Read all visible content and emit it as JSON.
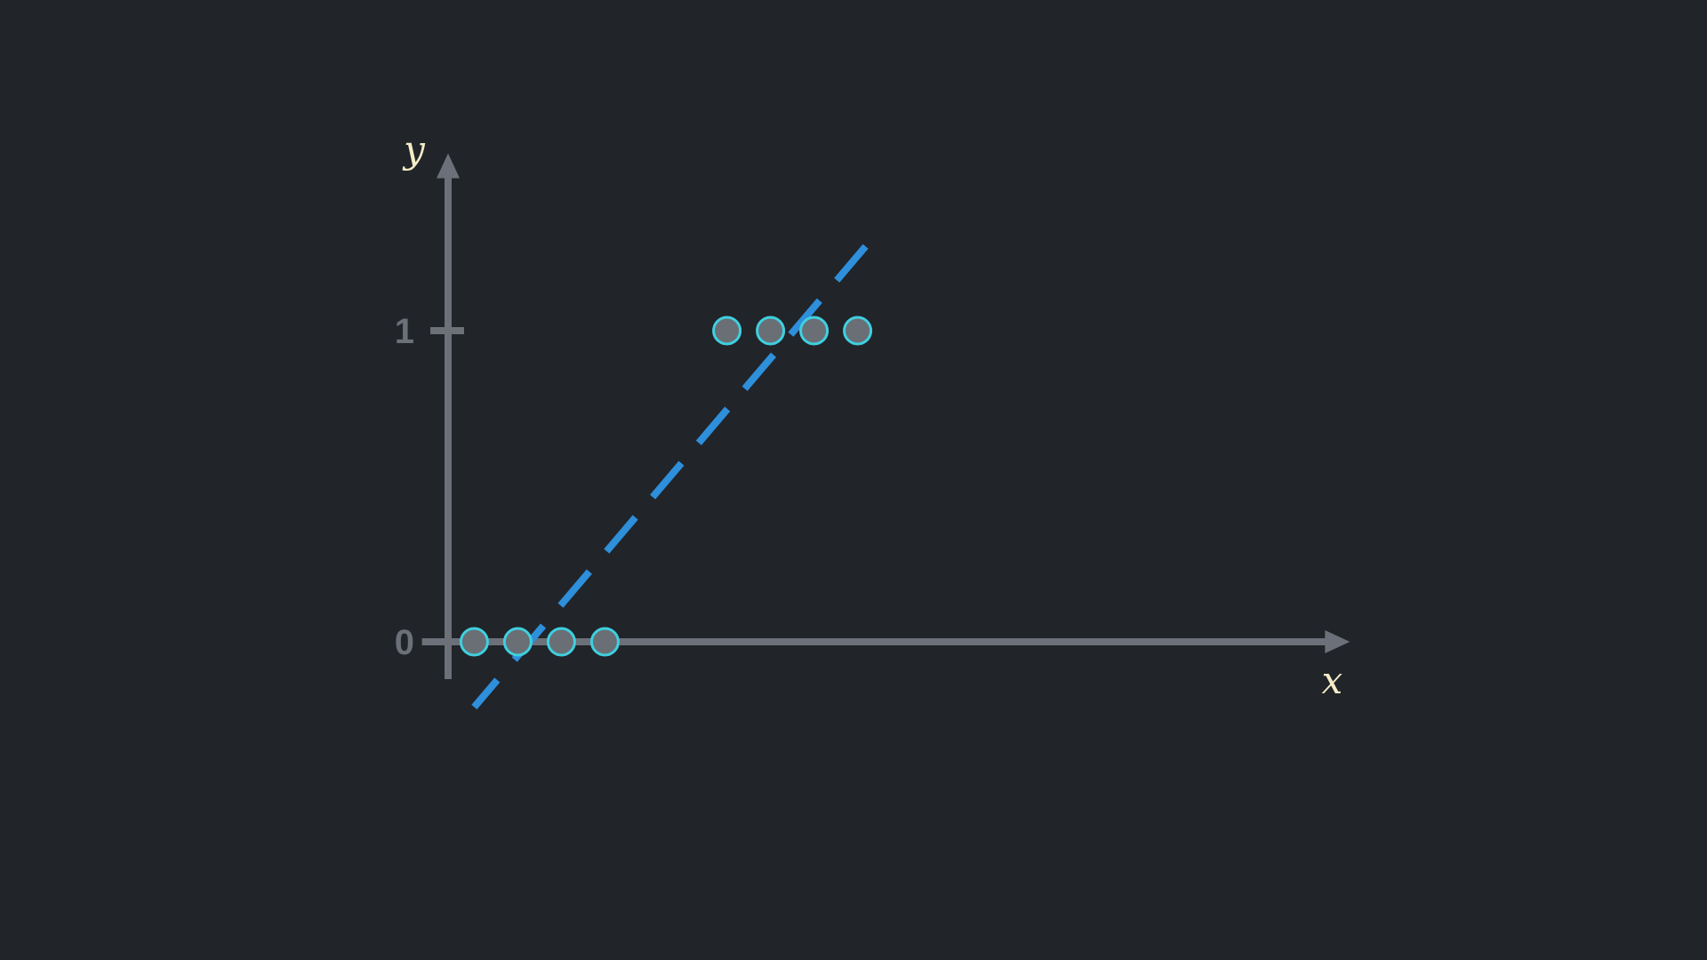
{
  "chart_data": {
    "type": "scatter",
    "title": "",
    "xlabel": "x",
    "ylabel": "y",
    "yticks": [
      {
        "value": 0,
        "label": "0"
      },
      {
        "value": 1,
        "label": "1"
      }
    ],
    "xlim": [
      -0.6,
      20.7
    ],
    "ylim": [
      -0.12,
      1.57
    ],
    "grid": false,
    "legend": "none",
    "series": [
      {
        "type": "scatter",
        "points": [
          {
            "x": 0.6,
            "y": 0
          },
          {
            "x": 1.6,
            "y": 0
          },
          {
            "x": 2.6,
            "y": 0
          },
          {
            "x": 3.6,
            "y": 0
          },
          {
            "x": 6.4,
            "y": 1
          },
          {
            "x": 7.4,
            "y": 1
          },
          {
            "x": 8.4,
            "y": 1
          },
          {
            "x": 9.4,
            "y": 1
          }
        ]
      },
      {
        "type": "line",
        "style": "dashed",
        "points": [
          {
            "x": 0.6,
            "y": -0.21
          },
          {
            "x": 9.7,
            "y": 1.29
          }
        ]
      }
    ]
  },
  "colors": {
    "background": "#212429",
    "axis": "#6b7079",
    "tick_label": "#6b7079",
    "axis_label": "#f4ecc6",
    "point_fill": "#6a6e75",
    "point_stroke": "#3ed0df",
    "fit_line": "#2e8fdb"
  }
}
